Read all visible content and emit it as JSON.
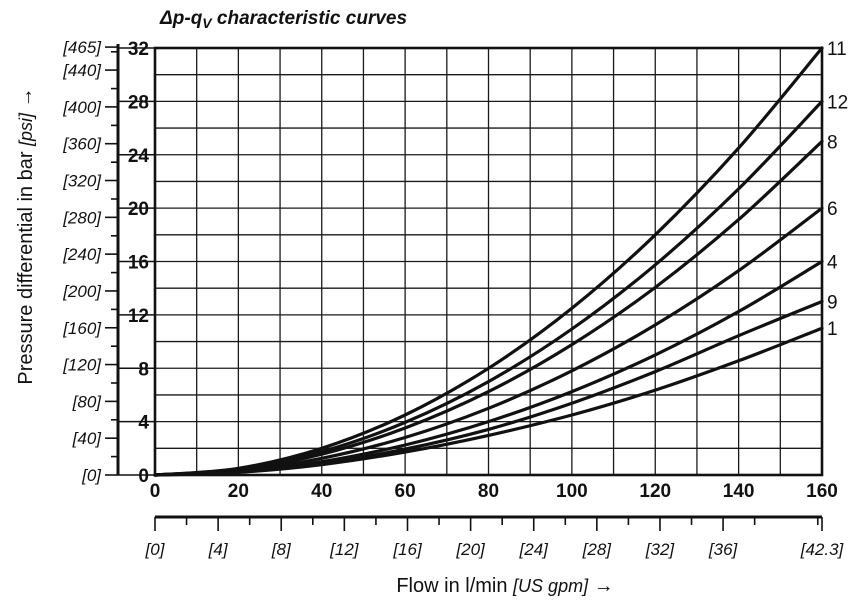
{
  "chart_data": {
    "type": "line",
    "title": "Δp-qV characteristic curves",
    "title_parts": {
      "main": "Δp-q",
      "sub": "V",
      "rest": " characteristic curves"
    },
    "xlabel": {
      "main": "Flow in l/min ",
      "unit": "[US gpm]",
      "arrow": " →"
    },
    "ylabel": {
      "main": "Pressure differential in bar ",
      "unit": "[psi]",
      "arrow": " →"
    },
    "xlim": [
      0,
      160
    ],
    "ylim": [
      0,
      32
    ],
    "x_ticks": [
      "0",
      "20",
      "40",
      "60",
      "80",
      "100",
      "120",
      "140",
      "160"
    ],
    "y_ticks": [
      "0",
      "4",
      "8",
      "12",
      "16",
      "20",
      "24",
      "28",
      "32"
    ],
    "psi_ticks": [
      {
        "bar": 0,
        "label": "[0]"
      },
      {
        "bar": 2.759,
        "label": "[40]"
      },
      {
        "bar": 5.517,
        "label": "[80]"
      },
      {
        "bar": 8.276,
        "label": "[120]"
      },
      {
        "bar": 11.034,
        "label": "[160]"
      },
      {
        "bar": 13.793,
        "label": "[200]"
      },
      {
        "bar": 16.552,
        "label": "[240]"
      },
      {
        "bar": 19.31,
        "label": "[280]"
      },
      {
        "bar": 22.069,
        "label": "[320]"
      },
      {
        "bar": 24.828,
        "label": "[360]"
      },
      {
        "bar": 27.586,
        "label": "[400]"
      },
      {
        "bar": 30.345,
        "label": "[440]"
      },
      {
        "bar": 32.069,
        "label": "[465]"
      }
    ],
    "gpm_ticks": [
      {
        "lpm": 0,
        "label": "[0]"
      },
      {
        "lpm": 15.14,
        "label": "[4]"
      },
      {
        "lpm": 30.28,
        "label": "[8]"
      },
      {
        "lpm": 45.42,
        "label": "[12]"
      },
      {
        "lpm": 60.57,
        "label": "[16]"
      },
      {
        "lpm": 75.71,
        "label": "[20]"
      },
      {
        "lpm": 90.85,
        "label": "[24]"
      },
      {
        "lpm": 105.99,
        "label": "[28]"
      },
      {
        "lpm": 121.13,
        "label": "[32]"
      },
      {
        "lpm": 136.27,
        "label": "[36]"
      },
      {
        "lpm": 160,
        "label": "[42.3]"
      }
    ],
    "series": [
      {
        "name": "11",
        "x": [
          0,
          20,
          40,
          60,
          80,
          100,
          120,
          140,
          160
        ],
        "y": [
          0,
          0.5,
          2.0,
          4.5,
          8.0,
          12.5,
          18.0,
          24.5,
          32.0
        ]
      },
      {
        "name": "12",
        "x": [
          0,
          20,
          40,
          60,
          80,
          100,
          120,
          140,
          160
        ],
        "y": [
          0,
          0.44,
          1.75,
          3.94,
          7.0,
          10.94,
          15.75,
          21.44,
          28.0
        ]
      },
      {
        "name": "8",
        "x": [
          0,
          20,
          40,
          60,
          80,
          100,
          120,
          140,
          160
        ],
        "y": [
          0,
          0.39,
          1.56,
          3.52,
          6.25,
          9.77,
          14.06,
          19.14,
          25.0
        ]
      },
      {
        "name": "6",
        "x": [
          0,
          20,
          40,
          60,
          80,
          100,
          120,
          140,
          160
        ],
        "y": [
          0,
          0.31,
          1.25,
          2.81,
          5.0,
          7.81,
          11.25,
          15.31,
          20.0
        ]
      },
      {
        "name": "4",
        "x": [
          0,
          20,
          40,
          60,
          80,
          100,
          120,
          140,
          160
        ],
        "y": [
          0,
          0.25,
          1.0,
          2.25,
          4.0,
          6.25,
          9.0,
          12.25,
          16.0
        ]
      },
      {
        "name": "9",
        "x": [
          0,
          20,
          40,
          60,
          80,
          100,
          120,
          140,
          160
        ],
        "y": [
          0,
          0.22,
          0.86,
          1.94,
          3.42,
          5.38,
          7.75,
          10.44,
          13.0
        ]
      },
      {
        "name": "1",
        "x": [
          0,
          20,
          40,
          60,
          80,
          100,
          120,
          140,
          160
        ],
        "y": [
          0,
          0.2,
          0.78,
          1.72,
          2.97,
          4.5,
          6.36,
          8.56,
          11.0
        ]
      }
    ],
    "grid": true,
    "colors": {
      "line": "#111111",
      "background": "#ffffff"
    }
  }
}
